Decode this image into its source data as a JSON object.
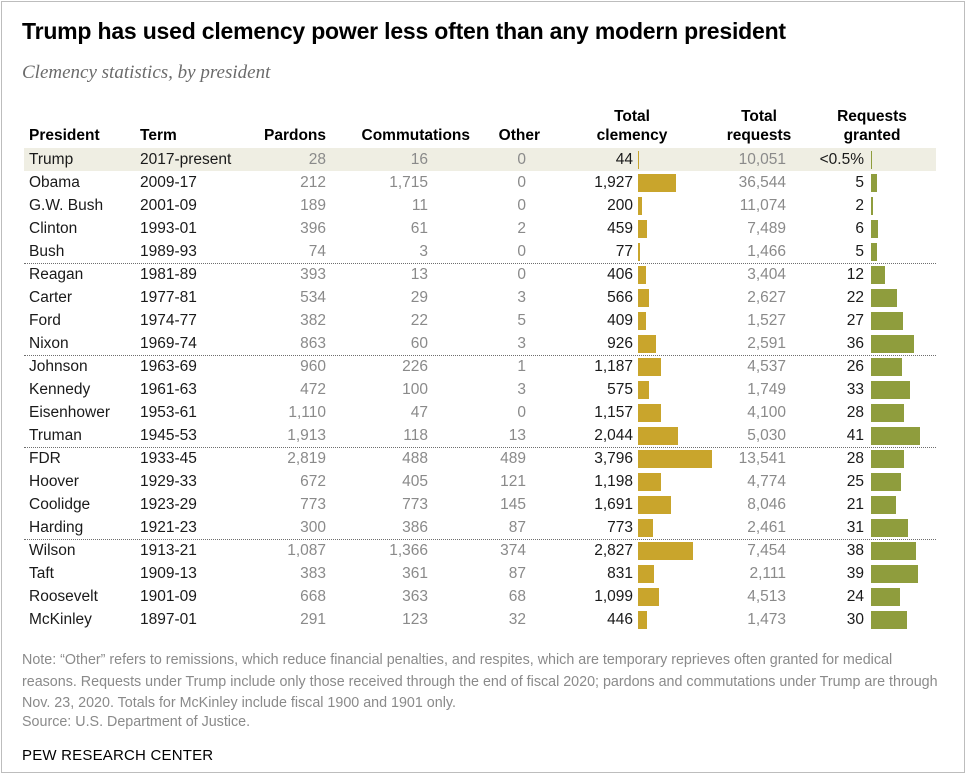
{
  "title": "Trump has used clemency power less often than any modern president",
  "subtitle": "Clemency statistics, by president",
  "headers": {
    "president": "President",
    "term": "Term",
    "pardons": "Pardons",
    "commutations": "Commutations",
    "other": "Other",
    "total_clemency_1": "Total",
    "total_clemency_2": "clemency",
    "total_requests_1": "Total",
    "total_requests_2": "requests",
    "granted_1": "Requests",
    "granted_2": "granted"
  },
  "note": "Note: “Other” refers to remissions, which reduce financial penalties, and respites, which are temporary reprieves often granted for medical reasons. Requests under Trump include only those received through the end of fiscal 2020; pardons and commutations under Trump are through Nov. 23, 2020. Totals for McKinley include fiscal 1900 and 1901 only.",
  "source": "Source: U.S. Department of Justice.",
  "brand": "PEW RESEARCH CENTER",
  "colors": {
    "bar": "#c9a52c",
    "bar_granted": "#8f9d3d",
    "highlight": "#efeee3"
  },
  "chart_data": {
    "type": "table",
    "columns": [
      "President",
      "Term",
      "Pardons",
      "Commutations",
      "Other",
      "Total clemency",
      "Total requests",
      "Requests granted"
    ],
    "highlight_row": "Trump",
    "group_breaks_after": [
      "Bush",
      "Nixon",
      "Truman",
      "Harding"
    ],
    "rows": [
      {
        "president": "Trump",
        "term": "2017-present",
        "pardons": "28",
        "commutations": "16",
        "other": "0",
        "total": "44",
        "total_value": 44,
        "requests": "10,051",
        "granted": "<0.5%",
        "granted_value": 0.3
      },
      {
        "president": "Obama",
        "term": "2009-17",
        "pardons": "212",
        "commutations": "1,715",
        "other": "0",
        "total": "1,927",
        "total_value": 1927,
        "requests": "36,544",
        "granted": "5",
        "granted_value": 5
      },
      {
        "president": "G.W. Bush",
        "term": "2001-09",
        "pardons": "189",
        "commutations": "11",
        "other": "0",
        "total": "200",
        "total_value": 200,
        "requests": "11,074",
        "granted": "2",
        "granted_value": 2
      },
      {
        "president": "Clinton",
        "term": "1993-01",
        "pardons": "396",
        "commutations": "61",
        "other": "2",
        "total": "459",
        "total_value": 459,
        "requests": "7,489",
        "granted": "6",
        "granted_value": 6
      },
      {
        "president": "Bush",
        "term": "1989-93",
        "pardons": "74",
        "commutations": "3",
        "other": "0",
        "total": "77",
        "total_value": 77,
        "requests": "1,466",
        "granted": "5",
        "granted_value": 5
      },
      {
        "president": "Reagan",
        "term": "1981-89",
        "pardons": "393",
        "commutations": "13",
        "other": "0",
        "total": "406",
        "total_value": 406,
        "requests": "3,404",
        "granted": "12",
        "granted_value": 12
      },
      {
        "president": "Carter",
        "term": "1977-81",
        "pardons": "534",
        "commutations": "29",
        "other": "3",
        "total": "566",
        "total_value": 566,
        "requests": "2,627",
        "granted": "22",
        "granted_value": 22
      },
      {
        "president": "Ford",
        "term": "1974-77",
        "pardons": "382",
        "commutations": "22",
        "other": "5",
        "total": "409",
        "total_value": 409,
        "requests": "1,527",
        "granted": "27",
        "granted_value": 27
      },
      {
        "president": "Nixon",
        "term": "1969-74",
        "pardons": "863",
        "commutations": "60",
        "other": "3",
        "total": "926",
        "total_value": 926,
        "requests": "2,591",
        "granted": "36",
        "granted_value": 36
      },
      {
        "president": "Johnson",
        "term": "1963-69",
        "pardons": "960",
        "commutations": "226",
        "other": "1",
        "total": "1,187",
        "total_value": 1187,
        "requests": "4,537",
        "granted": "26",
        "granted_value": 26
      },
      {
        "president": "Kennedy",
        "term": "1961-63",
        "pardons": "472",
        "commutations": "100",
        "other": "3",
        "total": "575",
        "total_value": 575,
        "requests": "1,749",
        "granted": "33",
        "granted_value": 33
      },
      {
        "president": "Eisenhower",
        "term": "1953-61",
        "pardons": "1,110",
        "commutations": "47",
        "other": "0",
        "total": "1,157",
        "total_value": 1157,
        "requests": "4,100",
        "granted": "28",
        "granted_value": 28
      },
      {
        "president": "Truman",
        "term": "1945-53",
        "pardons": "1,913",
        "commutations": "118",
        "other": "13",
        "total": "2,044",
        "total_value": 2044,
        "requests": "5,030",
        "granted": "41",
        "granted_value": 41
      },
      {
        "president": "FDR",
        "term": "1933-45",
        "pardons": "2,819",
        "commutations": "488",
        "other": "489",
        "total": "3,796",
        "total_value": 3796,
        "requests": "13,541",
        "granted": "28",
        "granted_value": 28
      },
      {
        "president": "Hoover",
        "term": "1929-33",
        "pardons": "672",
        "commutations": "405",
        "other": "121",
        "total": "1,198",
        "total_value": 1198,
        "requests": "4,774",
        "granted": "25",
        "granted_value": 25
      },
      {
        "president": "Coolidge",
        "term": "1923-29",
        "pardons": "773",
        "commutations": "773",
        "other": "145",
        "total": "1,691",
        "total_value": 1691,
        "requests": "8,046",
        "granted": "21",
        "granted_value": 21
      },
      {
        "president": "Harding",
        "term": "1921-23",
        "pardons": "300",
        "commutations": "386",
        "other": "87",
        "total": "773",
        "total_value": 773,
        "requests": "2,461",
        "granted": "31",
        "granted_value": 31
      },
      {
        "president": "Wilson",
        "term": "1913-21",
        "pardons": "1,087",
        "commutations": "1,366",
        "other": "374",
        "total": "2,827",
        "total_value": 2827,
        "requests": "7,454",
        "granted": "38",
        "granted_value": 38
      },
      {
        "president": "Taft",
        "term": "1909-13",
        "pardons": "383",
        "commutations": "361",
        "other": "87",
        "total": "831",
        "total_value": 831,
        "requests": "2,111",
        "granted": "39",
        "granted_value": 39
      },
      {
        "president": "Roosevelt",
        "term": "1901-09",
        "pardons": "668",
        "commutations": "363",
        "other": "68",
        "total": "1,099",
        "total_value": 1099,
        "requests": "4,513",
        "granted": "24",
        "granted_value": 24
      },
      {
        "president": "McKinley",
        "term": "1897-01",
        "pardons": "291",
        "commutations": "123",
        "other": "32",
        "total": "446",
        "total_value": 446,
        "requests": "1,473",
        "granted": "30",
        "granted_value": 30
      }
    ]
  }
}
